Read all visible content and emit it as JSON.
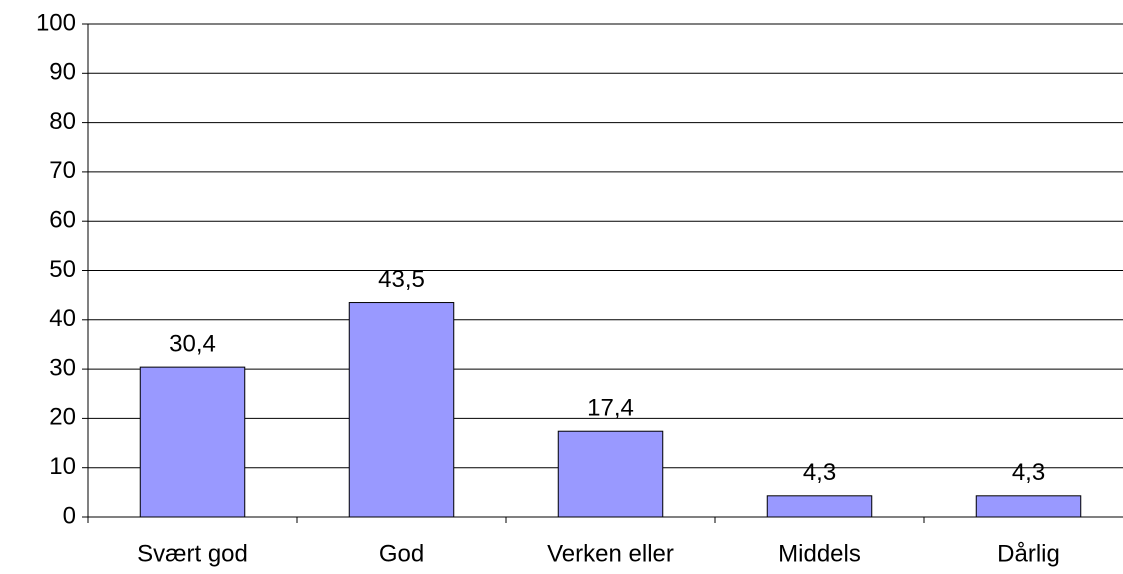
{
  "chart_data": {
    "type": "bar",
    "categories": [
      "Svært god",
      "God",
      "Verken eller",
      "Middels",
      "Dårlig"
    ],
    "values": [
      30.4,
      43.5,
      17.4,
      4.3,
      4.3
    ],
    "value_labels": [
      "30,4",
      "43,5",
      "17,4",
      "4,3",
      "4,3"
    ],
    "color": "#9999ff",
    "ylim": [
      0,
      100
    ],
    "yticks": [
      0,
      10,
      20,
      30,
      40,
      50,
      60,
      70,
      80,
      90,
      100
    ],
    "grid": true
  }
}
